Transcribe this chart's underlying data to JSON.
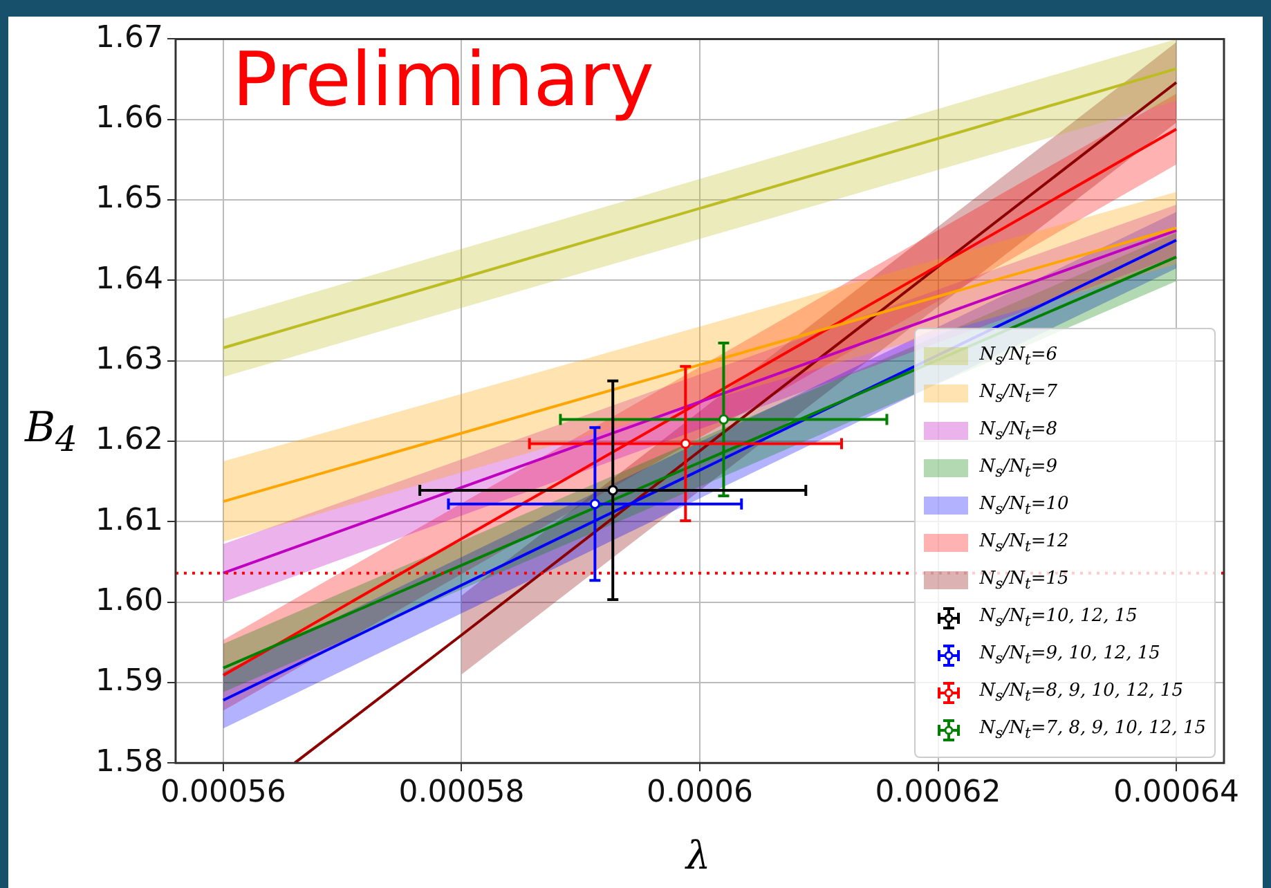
{
  "chart_data": {
    "type": "line",
    "xlabel": "λ",
    "ylabel": "B$_{4}$",
    "annotations": [
      "Preliminary"
    ],
    "xlim": [
      0.000556,
      0.000644
    ],
    "ylim": [
      1.58,
      1.67
    ],
    "xticks": [
      0.00056,
      0.00058,
      0.0006,
      0.00062,
      0.00064
    ],
    "yticks": [
      {
        "value": 1.58,
        "label": "1.58"
      },
      {
        "value": 1.59,
        "label": "1.59"
      },
      {
        "value": 1.6,
        "label": "1.60"
      },
      {
        "value": 1.61,
        "label": "1.61"
      },
      {
        "value": 1.62,
        "label": "1.62"
      },
      {
        "value": 1.63,
        "label": "1.63"
      },
      {
        "value": 1.64,
        "label": "1.64"
      },
      {
        "value": 1.65,
        "label": "1.65"
      },
      {
        "value": 1.66,
        "label": "1.66"
      },
      {
        "value": 1.67,
        "label": "1.67"
      }
    ],
    "grid": true,
    "legend": "bottom right",
    "line_style": "solid",
    "ref_lines": [
      {
        "axis": "y",
        "value": 1.6036,
        "color": "#ff0000",
        "line_style": "dotted"
      }
    ],
    "series": [
      {
        "name": "N$_{s}$/N$_{t}$=6",
        "color": "#bcbd22",
        "x": [
          0.00056,
          0.00064
        ],
        "values": [
          1.6316,
          1.6663
        ],
        "lower": [
          1.628,
          1.6623
        ],
        "upper": [
          1.6352,
          1.67
        ]
      },
      {
        "name": "N$_{s}$/N$_{t}$=7",
        "color": "#ffa500",
        "x": [
          0.00056,
          0.00064
        ],
        "values": [
          1.6125,
          1.6465
        ],
        "lower": [
          1.6075,
          1.642
        ],
        "upper": [
          1.6175,
          1.651
        ]
      },
      {
        "name": "N$_{s}$/N$_{t}$=8",
        "color": "#bf00bf",
        "x": [
          0.00056,
          0.00064
        ],
        "values": [
          1.6036,
          1.6462
        ],
        "lower": [
          1.6,
          1.643
        ],
        "upper": [
          1.6072,
          1.6494
        ]
      },
      {
        "name": "N$_{s}$/N$_{t}$=9",
        "color": "#008000",
        "x": [
          0.00056,
          0.00064
        ],
        "values": [
          1.5918,
          1.6429
        ],
        "lower": [
          1.5888,
          1.6399
        ],
        "upper": [
          1.5948,
          1.6459
        ]
      },
      {
        "name": "N$_{s}$/N$_{t}$=10",
        "color": "#0000ff",
        "x": [
          0.00056,
          0.00064
        ],
        "values": [
          1.5878,
          1.645
        ],
        "lower": [
          1.5843,
          1.6415
        ],
        "upper": [
          1.5913,
          1.6485
        ]
      },
      {
        "name": "N$_{s}$/N$_{t}$=12",
        "color": "#ff0000",
        "x": [
          0.00056,
          0.00064
        ],
        "values": [
          1.5909,
          1.6588
        ],
        "lower": [
          1.5865,
          1.6544
        ],
        "upper": [
          1.5953,
          1.6632
        ]
      },
      {
        "name": "N$_{s}$/N$_{t}$=15",
        "color": "#8b0000",
        "x": [
          0.000566,
          0.00058,
          0.00064
        ],
        "values": [
          1.58,
          1.5959,
          1.6646
        ],
        "lower": [
          null,
          1.591,
          1.6596
        ],
        "upper": [
          null,
          1.6008,
          1.6696
        ]
      },
      {
        "name": "N$_{s}$/N$_{t}$=10, 12, 15",
        "type": "scatter",
        "marker": "circle",
        "color": "#000000",
        "x": [
          0.0005927
        ],
        "values": [
          1.6139
        ],
        "errors": [
          0.0136
        ],
        "xerrors": [
          1.62e-05
        ]
      },
      {
        "name": "N$_{s}$/N$_{t}$=9, 10, 12, 15",
        "type": "scatter",
        "marker": "circle",
        "color": "#0000ff",
        "x": [
          0.0005912
        ],
        "values": [
          1.6122
        ],
        "errors": [
          0.0095
        ],
        "xerrors": [
          1.23e-05
        ]
      },
      {
        "name": "N$_{s}$/N$_{t}$=8, 9, 10, 12, 15",
        "type": "scatter",
        "marker": "circle",
        "color": "#ff0000",
        "x": [
          0.0005988
        ],
        "values": [
          1.6197
        ],
        "errors": [
          0.0096
        ],
        "xerrors": [
          1.31e-05
        ]
      },
      {
        "name": "N$_{s}$/N$_{t}$=7, 8, 9, 10, 12, 15",
        "type": "scatter",
        "marker": "circle",
        "color": "#008000",
        "x": [
          0.000602
        ],
        "values": [
          1.6227
        ],
        "errors": [
          0.0095
        ],
        "xerrors": [
          1.37e-05
        ]
      }
    ]
  }
}
